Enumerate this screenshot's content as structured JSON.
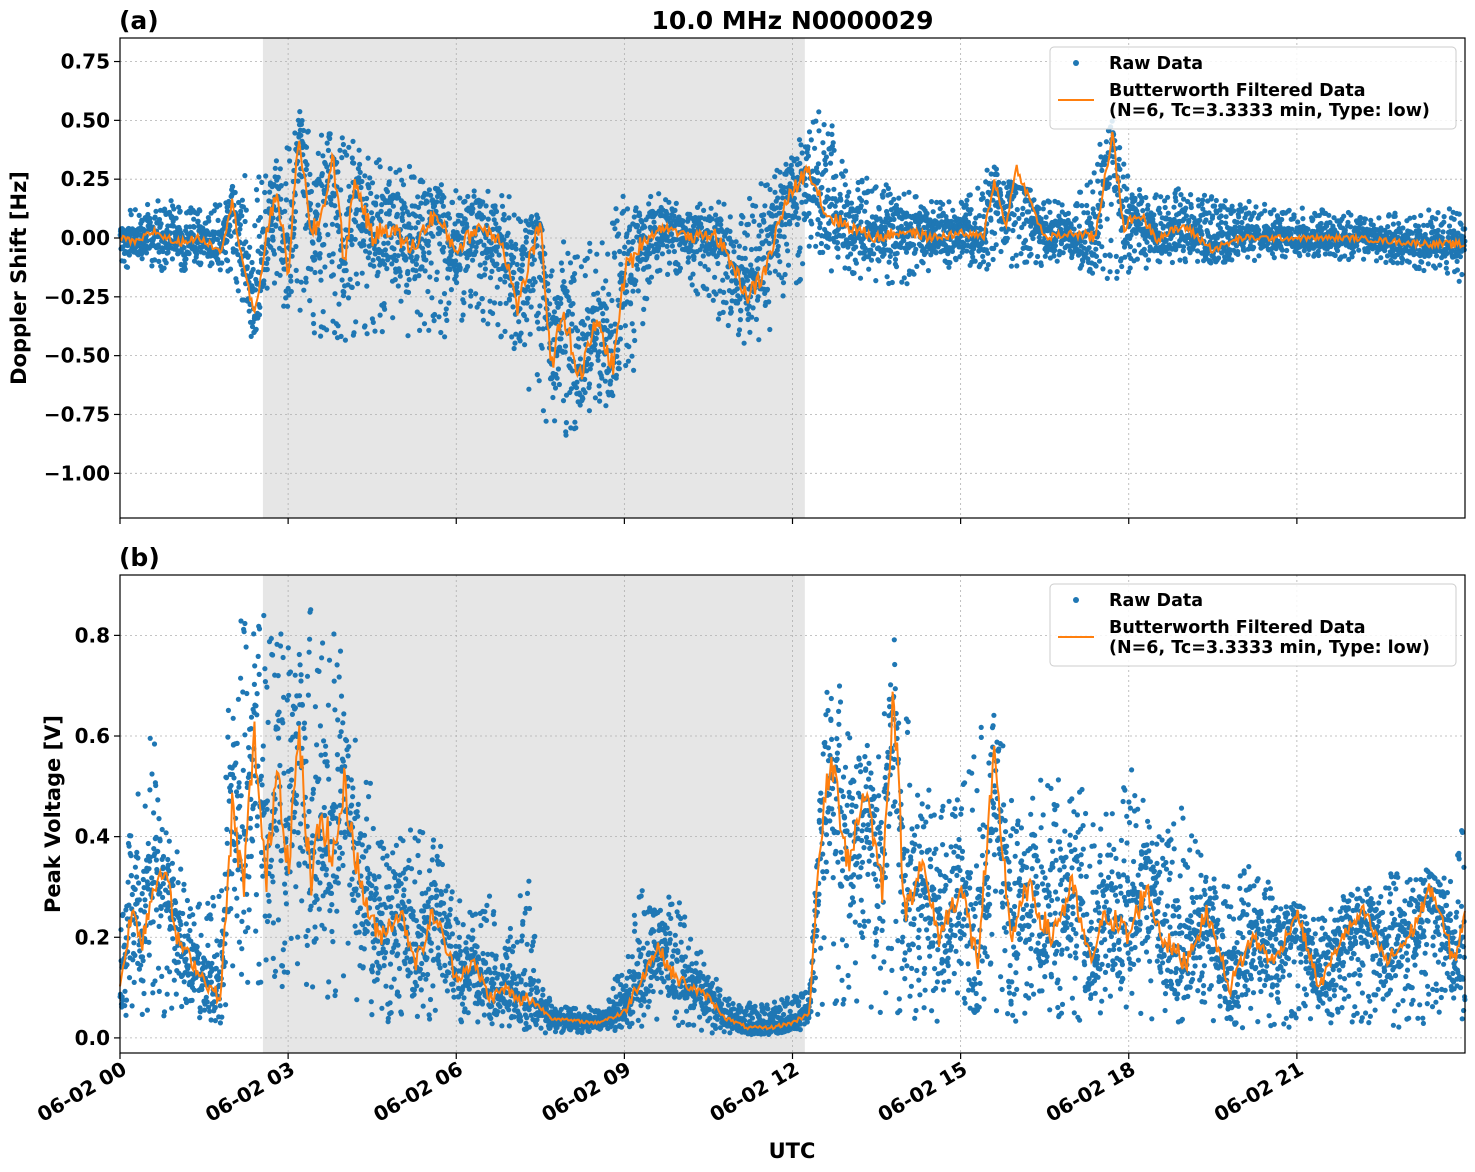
{
  "colors": {
    "raw": "#1f77b4",
    "filtered": "#ff7f0e",
    "shade": "#e6e6e6",
    "grid": "#b0b0b0"
  },
  "x_axis": {
    "label": "UTC",
    "tick_labels": [
      "06-02 00",
      "06-02 03",
      "06-02 06",
      "06-02 09",
      "06-02 12",
      "06-02 15",
      "06-02 18",
      "06-02 21"
    ],
    "tick_hours": [
      0,
      3,
      6,
      9,
      12,
      15,
      18,
      21
    ],
    "range_hours": [
      0,
      24
    ]
  },
  "chart_data": [
    {
      "type": "scatter",
      "panel_label": "(a)",
      "title": "10.0 MHz N0000029",
      "ylabel": "Doppler Shift [Hz]",
      "ylim": [
        -1.19,
        0.85
      ],
      "yticks": [
        -1.0,
        -0.75,
        -0.5,
        -0.25,
        0.0,
        0.25,
        0.5,
        0.75
      ],
      "ytick_labels": [
        "−1.00",
        "−0.75",
        "−0.50",
        "−0.25",
        "0.00",
        "0.25",
        "0.50",
        "0.75"
      ],
      "grid": true,
      "legend_position": "top-right",
      "shaded_hours": [
        2.55,
        12.22
      ],
      "series": [
        {
          "name": "Raw Data",
          "style": "points",
          "envelope": {
            "x": [
              0,
              0.5,
              1,
              1.5,
              2,
              2.3,
              2.6,
              2.9,
              3.2,
              3.5,
              4.0,
              4.5,
              5.0,
              5.5,
              6.0,
              6.5,
              7.0,
              7.3,
              7.6,
              8.0,
              8.5,
              9.0,
              9.5,
              10.0,
              10.5,
              11.0,
              11.5,
              12.0,
              12.5,
              13.0,
              13.5,
              14.0,
              15.0,
              15.5,
              16.0,
              17.0,
              17.7,
              18.0,
              18.5,
              19.0,
              20.0,
              21.0,
              22.0,
              23.0,
              24.0
            ],
            "upper": [
              0.1,
              0.15,
              0.15,
              0.12,
              0.2,
              0.25,
              0.3,
              0.35,
              0.5,
              0.4,
              0.4,
              0.35,
              0.3,
              0.25,
              0.2,
              0.2,
              0.2,
              0.15,
              -0.05,
              0.0,
              -0.05,
              0.15,
              0.18,
              0.15,
              0.15,
              0.1,
              0.25,
              0.35,
              0.55,
              0.3,
              0.22,
              0.2,
              0.15,
              0.3,
              0.2,
              0.15,
              0.5,
              0.25,
              0.2,
              0.2,
              0.15,
              0.12,
              0.1,
              0.1,
              0.12
            ],
            "lower": [
              -0.12,
              -0.15,
              -0.15,
              -0.12,
              -0.15,
              -0.4,
              -0.3,
              -0.35,
              -0.3,
              -0.45,
              -0.45,
              -0.4,
              -0.45,
              -0.45,
              -0.4,
              -0.35,
              -0.5,
              -0.65,
              -0.8,
              -0.85,
              -0.7,
              -0.75,
              -0.2,
              -0.15,
              -0.3,
              -0.5,
              -0.45,
              -0.2,
              -0.15,
              -0.15,
              -0.2,
              -0.2,
              -0.12,
              -0.15,
              -0.12,
              -0.12,
              -0.2,
              -0.15,
              -0.15,
              -0.12,
              -0.1,
              -0.08,
              -0.1,
              -0.12,
              -0.2
            ]
          }
        },
        {
          "name": "Butterworth Filtered Data\n(N=6, Tc=3.3333 min, Type: low)",
          "style": "line",
          "x": [
            0,
            0.3,
            0.6,
            1.0,
            1.4,
            1.8,
            2.0,
            2.2,
            2.4,
            2.6,
            2.8,
            3.0,
            3.2,
            3.4,
            3.6,
            3.8,
            4.0,
            4.2,
            4.5,
            4.8,
            5.2,
            5.6,
            6.0,
            6.4,
            6.8,
            7.1,
            7.3,
            7.5,
            7.7,
            7.9,
            8.2,
            8.5,
            8.8,
            9.0,
            9.3,
            9.7,
            10.2,
            10.6,
            10.9,
            11.2,
            11.5,
            11.8,
            12.0,
            12.3,
            12.6,
            13.0,
            13.5,
            14.0,
            14.5,
            15.0,
            15.4,
            15.6,
            15.8,
            16.0,
            16.5,
            17.0,
            17.4,
            17.7,
            17.9,
            18.2,
            18.5,
            19.0,
            19.5,
            20.0,
            21.0,
            22.0,
            23.0,
            24.0
          ],
          "y": [
            0.0,
            -0.02,
            0.03,
            -0.02,
            0.0,
            -0.05,
            0.15,
            -0.1,
            -0.35,
            0.0,
            0.2,
            -0.15,
            0.45,
            0.0,
            0.1,
            0.35,
            -0.1,
            0.25,
            0.0,
            0.05,
            -0.05,
            0.1,
            -0.05,
            0.05,
            0.0,
            -0.3,
            -0.1,
            0.05,
            -0.55,
            -0.3,
            -0.6,
            -0.35,
            -0.55,
            -0.15,
            -0.02,
            0.05,
            0.0,
            0.02,
            -0.1,
            -0.25,
            -0.15,
            0.1,
            0.2,
            0.3,
            0.1,
            0.05,
            0.0,
            0.03,
            0.0,
            0.02,
            0.0,
            0.25,
            0.05,
            0.3,
            0.0,
            0.02,
            0.0,
            0.45,
            0.05,
            0.1,
            0.0,
            0.05,
            -0.05,
            0.0,
            0.0,
            0.0,
            -0.02,
            -0.03
          ]
        }
      ]
    },
    {
      "type": "scatter",
      "panel_label": "(b)",
      "title": "",
      "ylabel": "Peak Voltage [V]",
      "ylim": [
        -0.03,
        0.92
      ],
      "yticks": [
        0.0,
        0.2,
        0.4,
        0.6,
        0.8
      ],
      "ytick_labels": [
        "0.0",
        "0.2",
        "0.4",
        "0.6",
        "0.8"
      ],
      "grid": true,
      "legend_position": "top-right",
      "shaded_hours": [
        2.55,
        12.22
      ],
      "series": [
        {
          "name": "Raw Data",
          "style": "points",
          "envelope": {
            "x": [
              0,
              0.3,
              0.6,
              0.9,
              1.2,
              1.5,
              1.8,
              2.0,
              2.3,
              2.6,
              2.9,
              3.2,
              3.5,
              3.8,
              4.2,
              4.5,
              4.8,
              5.2,
              5.6,
              6.0,
              6.3,
              6.6,
              6.8,
              7.0,
              7.3,
              7.5,
              7.8,
              8.2,
              8.6,
              9.0,
              9.3,
              9.6,
              9.9,
              10.2,
              10.5,
              10.8,
              11.2,
              11.6,
              12.0,
              12.3,
              12.6,
              13.0,
              13.5,
              13.8,
              14.2,
              14.6,
              15.0,
              15.5,
              16.0,
              16.5,
              17.0,
              17.5,
              18.0,
              18.5,
              19.0,
              19.5,
              20.0,
              20.5,
              21.0,
              21.5,
              22.0,
              22.5,
              23.0,
              23.5,
              24.0
            ],
            "upper": [
              0.3,
              0.5,
              0.6,
              0.4,
              0.3,
              0.25,
              0.3,
              0.85,
              0.8,
              0.85,
              0.8,
              0.85,
              0.8,
              0.82,
              0.6,
              0.5,
              0.4,
              0.4,
              0.45,
              0.3,
              0.25,
              0.3,
              0.15,
              0.25,
              0.3,
              0.1,
              0.06,
              0.06,
              0.06,
              0.15,
              0.3,
              0.25,
              0.3,
              0.2,
              0.15,
              0.08,
              0.07,
              0.07,
              0.08,
              0.1,
              0.75,
              0.7,
              0.5,
              0.8,
              0.5,
              0.45,
              0.5,
              0.7,
              0.45,
              0.5,
              0.55,
              0.4,
              0.55,
              0.4,
              0.45,
              0.3,
              0.35,
              0.3,
              0.25,
              0.25,
              0.3,
              0.3,
              0.35,
              0.3,
              0.45
            ],
            "lower": [
              0.04,
              0.04,
              0.05,
              0.04,
              0.04,
              0.03,
              0.03,
              0.1,
              0.08,
              0.1,
              0.1,
              0.1,
              0.08,
              0.08,
              0.05,
              0.04,
              0.03,
              0.03,
              0.03,
              0.03,
              0.03,
              0.03,
              0.02,
              0.02,
              0.02,
              0.01,
              0.01,
              0.01,
              0.01,
              0.01,
              0.02,
              0.02,
              0.02,
              0.02,
              0.01,
              0.01,
              0.01,
              0.01,
              0.01,
              0.02,
              0.05,
              0.05,
              0.04,
              0.05,
              0.03,
              0.03,
              0.03,
              0.03,
              0.03,
              0.03,
              0.03,
              0.03,
              0.03,
              0.03,
              0.03,
              0.03,
              0.02,
              0.02,
              0.02,
              0.02,
              0.02,
              0.02,
              0.02,
              0.03,
              0.03
            ]
          }
        },
        {
          "name": "Butterworth Filtered Data\n(N=6, Tc=3.3333 min, Type: low)",
          "style": "line",
          "x": [
            0,
            0.2,
            0.4,
            0.6,
            0.8,
            1.0,
            1.3,
            1.6,
            1.8,
            2.0,
            2.2,
            2.4,
            2.6,
            2.8,
            3.0,
            3.2,
            3.4,
            3.6,
            3.8,
            4.0,
            4.3,
            4.6,
            5.0,
            5.3,
            5.6,
            6.0,
            6.3,
            6.6,
            6.9,
            7.1,
            7.3,
            7.5,
            7.7,
            8.0,
            8.5,
            9.0,
            9.3,
            9.6,
            9.9,
            10.2,
            10.5,
            10.8,
            11.2,
            11.6,
            12.0,
            12.3,
            12.5,
            12.7,
            13.0,
            13.3,
            13.6,
            13.8,
            14.0,
            14.3,
            14.6,
            15.0,
            15.3,
            15.6,
            15.9,
            16.2,
            16.6,
            17.0,
            17.3,
            17.6,
            18.0,
            18.3,
            18.6,
            19.0,
            19.4,
            19.8,
            20.2,
            20.6,
            21.0,
            21.4,
            21.8,
            22.2,
            22.6,
            23.0,
            23.4,
            23.8,
            24.0
          ],
          "y": [
            0.1,
            0.25,
            0.2,
            0.3,
            0.35,
            0.2,
            0.15,
            0.1,
            0.08,
            0.45,
            0.3,
            0.6,
            0.3,
            0.55,
            0.35,
            0.6,
            0.3,
            0.45,
            0.35,
            0.5,
            0.3,
            0.2,
            0.25,
            0.15,
            0.25,
            0.12,
            0.15,
            0.08,
            0.1,
            0.07,
            0.08,
            0.06,
            0.04,
            0.035,
            0.03,
            0.05,
            0.12,
            0.18,
            0.12,
            0.1,
            0.08,
            0.04,
            0.02,
            0.02,
            0.03,
            0.05,
            0.4,
            0.55,
            0.35,
            0.5,
            0.3,
            0.7,
            0.25,
            0.35,
            0.2,
            0.3,
            0.15,
            0.55,
            0.2,
            0.3,
            0.2,
            0.3,
            0.15,
            0.25,
            0.2,
            0.3,
            0.2,
            0.15,
            0.25,
            0.1,
            0.2,
            0.15,
            0.25,
            0.1,
            0.2,
            0.25,
            0.15,
            0.2,
            0.3,
            0.15,
            0.25
          ]
        }
      ]
    }
  ]
}
